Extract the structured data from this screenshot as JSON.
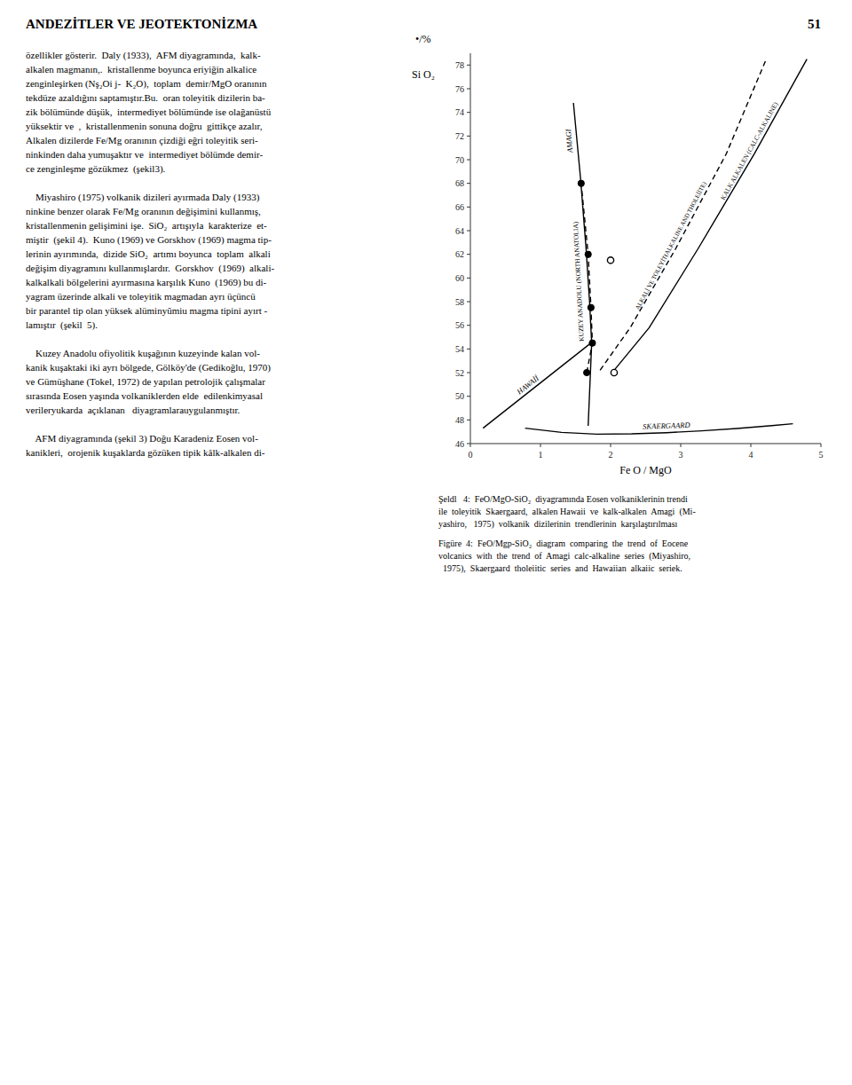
{
  "page": {
    "header": "ANDEZİTLER VE JEOTEKTONİZMA",
    "page_number": "51",
    "body_paragraphs": [
      [
        "özellikler gösterir.  Daly (1933),  AFM diyagramında,  kalk-",
        "alkalen magmanın,.  kristallenme boyunca eriyiğin alkalice",
        "zenginleşirken (Nş₂Oi j-  K₂O),  toplam  demir/MgO oranının",
        "tekdüze azaldığını saptamıştır.Bu.  oran toleyitik dizilerin ba-",
        "zik bölümünde düşük,  intermediyet bölümünde ise olağanüstü",
        "yüksektir ve  ,  kristallenmenin sonuna doğru  gittikçe azalır,",
        "Alkalen dizilerde Fe/Mg oranının çizdiği eğri toleyitik seri-",
        "ninkinden daha yumuşaktır ve  intermediyet bölümde demir-",
        "ce zenginleşme gözükmez  (şekil3)."
      ],
      [
        "    Miyashiro (1975) volkanik dizileri ayırmada Daly (1933)",
        "ninkine benzer olarak Fe/Mg oranının değişimini kullanmış,",
        "kristallenmenin gelişimini işe.  SiO₂  artışıyla  karakterize  et-",
        "miştir  (şekil 4).  Kuno (1969) ve Gorskhov (1969) magma tip-",
        "lerinin ayırımında,  dizide SiO₂  artımı boyunca  toplam  alkali",
        "değişim diyagramını kullanmışlardır.  Gorskhov  (1969)  alkali-",
        "kalkalkali bölgelerini ayırmasına karşılık Kuno  (1969) bu di-",
        "yagram üzerinde alkali ve toleyitik magmadan ayrı üçüncü",
        "bir parantel tip olan yüksek alüminyûmiu magma tipini ayırt -",
        "lamıştır  (şekil  5)."
      ],
      [
        "    Kuzey Anadolu ofiyolitik kuşağının kuzeyinde kalan vol-",
        "kanik kuşaktaki iki ayrı bölgede, Gölköy'de (Gedikoğlu, 1970)",
        "ve Gümüşhane (Tokel, 1972) de yapılan petrolojik çalışmalar",
        "sırasında Eosen yaşında volkaniklerden elde  edilenkimyasal",
        "verileryukarda  açıklanan   diyagramlarauygulanmıştır. "
      ],
      [
        "    AFM diyagramında (şekil 3) Doğu Karadeniz Eosen vol-",
        "kanikleri,  orojenik kuşaklarda gözüken tipik kâlk-alkalen di-"
      ]
    ],
    "captions": [
      [
        "Şeldl   4:  FeO/MgO-SiO₂  diyagramında Eosen volkaniklerinin trendi",
        "ile  toleyitik  Skaergaard,  alkalen Hawaii  ve  kalk-alkalen  Amagi  (Mi-",
        "yashiro,   1975)  volkanik  dizilerinin  trendlerinin  karşılaştırılması"
      ],
      [
        "Figüre  4:  FeO/Mgp-SiO₂  diagram  comparing  the  trend  of  Eocene",
        "volcanics  with  the  trend  of  Amagi  calc-alkaline  series  (Miyashiro,",
        "  1975),  Skaergaard  tholeiitic  series  and  Hawaiian  alkaiic  seriek."
      ]
    ]
  },
  "chart_data": {
    "type": "line",
    "xlabel": "Fe O / MgO",
    "ylabel": "Si O₂",
    "annotations": [
      "•/%"
    ],
    "xlim": [
      0,
      5
    ],
    "ylim": [
      46,
      79
    ],
    "xticks": [
      0,
      1,
      2,
      3,
      4,
      5
    ],
    "yticks": [
      46,
      48,
      50,
      52,
      54,
      56,
      58,
      60,
      62,
      64,
      66,
      68,
      70,
      72,
      74,
      76,
      78
    ],
    "grid": false,
    "series": [
      {
        "name": "SKAERGAARD",
        "color": "#000000",
        "line_style": "solid",
        "x": [
          0.78,
          1.3,
          1.8,
          2.3,
          2.8,
          3.3,
          3.8,
          4.3,
          4.6
        ],
        "values": [
          47.3,
          46.95,
          46.8,
          46.82,
          46.92,
          47.08,
          47.28,
          47.52,
          47.68
        ]
      },
      {
        "name": "HAWAİİ",
        "color": "#000000",
        "line_style": "solid",
        "x": [
          0.18,
          1.72
        ],
        "values": [
          47.3,
          54.5
        ]
      },
      {
        "name": "AMAGI",
        "color": "#000000",
        "line_style": "solid",
        "x": [
          1.68,
          1.73,
          1.7,
          1.65,
          1.57,
          1.47
        ],
        "values": [
          47.5,
          54.5,
          58.0,
          62.5,
          68.5,
          74.8
        ]
      },
      {
        "name": "KUZEY ANADOLU (NORTH ANATOLIA)",
        "color": "#000000",
        "line_style": "dashed",
        "marker": "circle",
        "x": [
          1.66,
          1.74,
          1.72,
          1.68,
          1.58
        ],
        "values": [
          52.0,
          54.5,
          57.5,
          62.0,
          68.0
        ]
      },
      {
        "name": "KALK ALKALEN (CALC-ALKALINE)",
        "color": "#000000",
        "line_style": "solid",
        "x": [
          2.05,
          2.55,
          3.25,
          4.05,
          4.8
        ],
        "values": [
          52.2,
          55.8,
          62.5,
          70.5,
          78.5
        ]
      },
      {
        "name": "ALKALİ VE TOLEYİT(ALKALINE AND THOLEİİTE)",
        "color": "#000000",
        "line_style": "dashed",
        "x": [
          1.85,
          2.28,
          2.93,
          3.65,
          4.22
        ],
        "values": [
          52.2,
          55.8,
          62.5,
          70.5,
          78.5
        ]
      },
      {
        "type": "scatter",
        "color": "#000000",
        "marker": "open-circle",
        "x": [
          2.05,
          2.0
        ],
        "values": [
          52.0,
          61.5
        ]
      }
    ]
  }
}
